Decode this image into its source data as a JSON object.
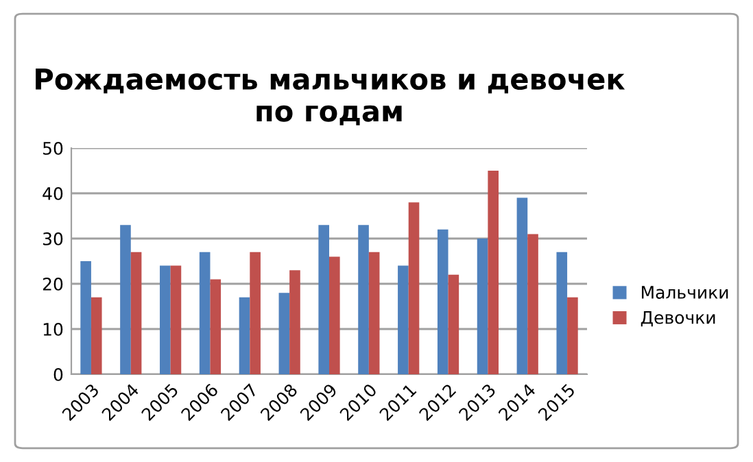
{
  "chart_data": {
    "type": "bar",
    "title": "Рождаемость мальчиков и девочек\nпо годам",
    "categories": [
      "2003",
      "2004",
      "2005",
      "2006",
      "2007",
      "2008",
      "2009",
      "2010",
      "2011",
      "2012",
      "2013",
      "2014",
      "2015"
    ],
    "series": [
      {
        "name": "Мальчики",
        "color": "#4f81bd",
        "values": [
          25,
          33,
          24,
          27,
          17,
          18,
          33,
          33,
          24,
          32,
          30,
          39,
          27
        ]
      },
      {
        "name": "Девочки",
        "color": "#c0504d",
        "values": [
          17,
          27,
          24,
          21,
          27,
          23,
          26,
          27,
          38,
          22,
          45,
          31,
          17
        ]
      }
    ],
    "ylim": [
      0,
      50
    ],
    "yticks": [
      0,
      10,
      20,
      30,
      40,
      50
    ],
    "grid": "y",
    "legend": "right"
  }
}
